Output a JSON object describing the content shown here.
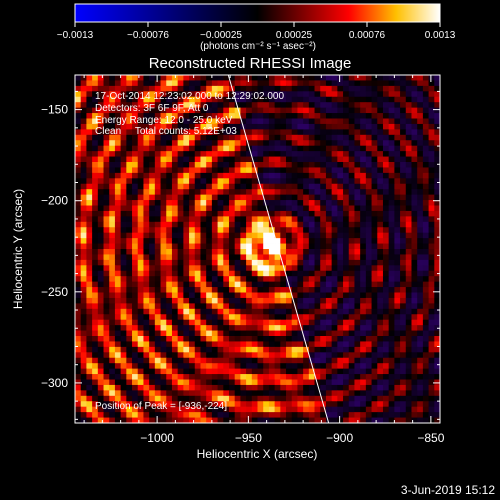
{
  "colorbar": {
    "tick_labels": [
      "-0.0013",
      "-0.00076",
      "-0.00025",
      "0.00025",
      "0.00076",
      "0.0013"
    ],
    "unit_label": "(photons cm⁻² s⁻¹ asec⁻²)",
    "range": [
      -0.0013,
      0.0013
    ],
    "colors": [
      "#0000ff",
      "#000000",
      "#ff0000",
      "#ffffff"
    ]
  },
  "chart_data": {
    "type": "heatmap",
    "title": "Reconstructed RHESSI Image",
    "xlabel": "Heliocentric X (arcsec)",
    "ylabel": "Heliocentric Y (arcsec)",
    "xlim": [
      -1045,
      -845
    ],
    "ylim": [
      -322,
      -131
    ],
    "x_ticks": [
      -1000,
      -950,
      -900,
      -850
    ],
    "y_ticks": [
      -150,
      -200,
      -250,
      -300
    ],
    "x_tick_labels": [
      "-1000",
      "-950",
      "-900",
      "-850"
    ],
    "y_tick_labels": [
      "-150",
      "-200",
      "-250",
      "-300"
    ],
    "info_lines": [
      "17-Oct-2014 12:23:02.000 to 12:29:02.000",
      "Detectors: 3F 6F 9F, Att 0",
      "Energy Range: 12.0 - 25.0 keV",
      "Clean     Total counts: 5.12E+03"
    ],
    "peak_label": "Position of Peak = [-936,-224]",
    "peak": [
      -936,
      -224
    ],
    "limb_line": [
      [
        -961,
        -131
      ],
      [
        -906,
        -322
      ]
    ]
  },
  "footer": {
    "date": "3-Jun-2019 15:12"
  }
}
